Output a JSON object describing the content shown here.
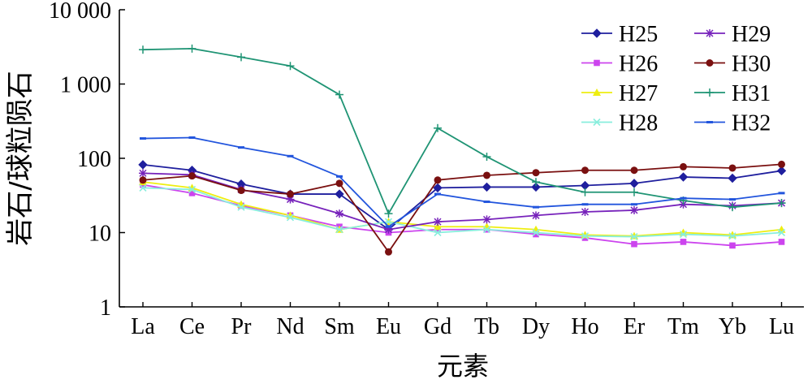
{
  "chart_data": {
    "type": "line",
    "scale_y": "log",
    "ylim": [
      1,
      10000
    ],
    "ylabel": "岩石/球粒陨石",
    "xlabel": "元素",
    "y_ticks": [
      "1",
      "10",
      "100",
      "1 000",
      "10 000"
    ],
    "y_tick_values": [
      1,
      10,
      100,
      1000,
      10000
    ],
    "categories": [
      "La",
      "Ce",
      "Pr",
      "Nd",
      "Sm",
      "Eu",
      "Gd",
      "Tb",
      "Dy",
      "Ho",
      "Er",
      "Tm",
      "Yb",
      "Lu"
    ],
    "legend_position": "top-right",
    "grid": false,
    "series": [
      {
        "name": "H25",
        "color": "#1f1f9e",
        "marker": "diamond",
        "values": [
          82,
          69,
          45,
          33,
          33,
          11,
          40,
          41,
          41,
          43,
          46,
          56,
          54,
          68
        ]
      },
      {
        "name": "H26",
        "color": "#cc44ee",
        "marker": "square",
        "values": [
          44,
          34,
          23,
          17,
          12,
          10,
          11,
          11,
          9.5,
          8.5,
          7,
          7.5,
          6.7,
          7.5
        ]
      },
      {
        "name": "H27",
        "color": "#eeee11",
        "marker": "triangle",
        "values": [
          48,
          40,
          24,
          17,
          11,
          14,
          12,
          12,
          11,
          9.3,
          9,
          10,
          9.3,
          11
        ]
      },
      {
        "name": "H28",
        "color": "#88eedd",
        "marker": "x",
        "values": [
          40,
          38,
          22,
          16,
          11,
          14,
          10,
          11,
          10,
          9,
          8.8,
          9.5,
          9,
          10
        ]
      },
      {
        "name": "H29",
        "color": "#7722bb",
        "marker": "star",
        "values": [
          63,
          60,
          38,
          28,
          18,
          11,
          14,
          15,
          17,
          19,
          20,
          24,
          23,
          25
        ]
      },
      {
        "name": "H30",
        "color": "#7a1010",
        "marker": "circle",
        "values": [
          51,
          58,
          37,
          33,
          46,
          5.5,
          51,
          59,
          64,
          69,
          69,
          77,
          74,
          83
        ]
      },
      {
        "name": "H31",
        "color": "#1f9474",
        "marker": "plus",
        "values": [
          2900,
          3000,
          2300,
          1750,
          720,
          18,
          255,
          105,
          48,
          35,
          35,
          27,
          22,
          25
        ]
      },
      {
        "name": "H32",
        "color": "#2255dd",
        "marker": "dash",
        "values": [
          185,
          190,
          140,
          107,
          57,
          12,
          33,
          26,
          22,
          24,
          24,
          29,
          28,
          34
        ]
      }
    ]
  }
}
